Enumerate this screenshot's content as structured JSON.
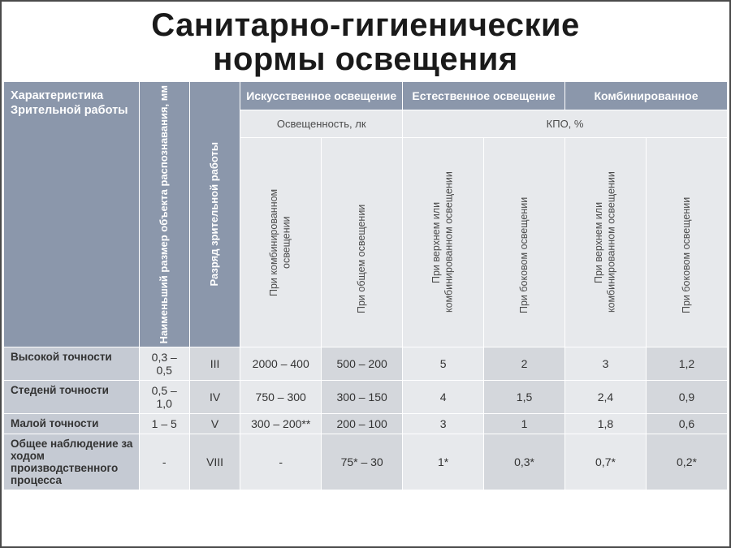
{
  "title_line1": "Санитарно-гигиенические",
  "title_line2": "нормы освещения",
  "headers": {
    "char": "Характеристика Зрительной работы",
    "size": "Наименьший размер объекта распознавания, мм",
    "cat": "Разряд зрительной работы",
    "artificial": "Искусственное освещение",
    "natural": "Естественное освещение",
    "combined": "Комбинированное",
    "lux": "Освещенность, лк",
    "kpo": "КПО, %",
    "sub": {
      "comb": "При комбинированном освещении",
      "gen": "При общем освещении",
      "top_comb": "При верхнем или комбинированном освещении",
      "side": "При боковом освещении",
      "top_comb2": "При верхнем или комбинированном освещении",
      "side2": "При боковом освещении"
    }
  },
  "rows": [
    {
      "label": "Высокой точности",
      "size": "0,3 – 0,5",
      "cat": "III",
      "v": [
        "2000 – 400",
        "500 – 200",
        "5",
        "2",
        "3",
        "1,2"
      ]
    },
    {
      "label": "Стеденй точности",
      "size": "0,5 – 1,0",
      "cat": "IV",
      "v": [
        "750 – 300",
        "300 – 150",
        "4",
        "1,5",
        "2,4",
        "0,9"
      ]
    },
    {
      "label": "Малой точности",
      "size": "1 – 5",
      "cat": "V",
      "v": [
        "300 – 200**",
        "200 – 100",
        "3",
        "1",
        "1,8",
        "0,6"
      ]
    },
    {
      "label": "Общее наблюдение за ходом производственного процесса",
      "size": "-",
      "cat": "VIII",
      "v": [
        "-",
        "75* – 30",
        "1*",
        "0,3*",
        "0,7*",
        "0,2*"
      ]
    }
  ],
  "colors": {
    "blue": "#8b97ab",
    "grey_dark": "#c5cad3",
    "grey_mid": "#d4d7dc",
    "grey_light": "#e7e9ec",
    "text": "#333333"
  }
}
